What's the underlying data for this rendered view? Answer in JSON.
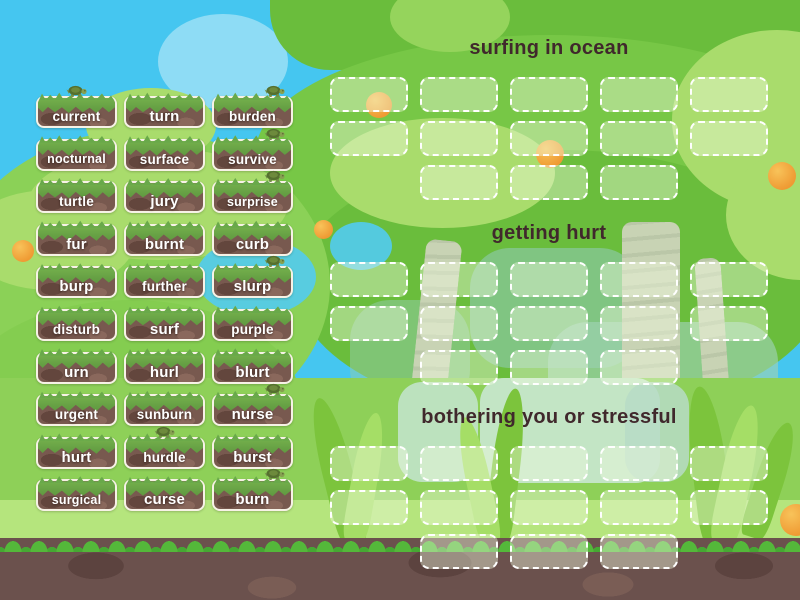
{
  "title": "word group sort game",
  "icons": {
    "turtle": "turtle-icon"
  },
  "colors": {
    "sky": "#45c6f0",
    "cloud": "#7ed8f4",
    "canopy": "#77c746",
    "canopy-dark": "#6abd3c",
    "bush": "#a9dc6c",
    "meadow": "#8ed058",
    "band": "#b5e57d",
    "dirt": "#6b514d",
    "dirt-dark": "#5c433f",
    "grass-fringe": "#54b83a",
    "trunk": "#c8d3b4",
    "fruit": "#ef9a33",
    "tile-brown": "#78594f",
    "tile-brown-dark": "#63463d",
    "tile-grass": "#74b04c",
    "tile-border": "#f7f2e6",
    "tile-text": "#ffffff",
    "header-text": "#40282c",
    "slot-border": "#ffffff",
    "slot-fill": "rgba(240,250,225,0.42)"
  },
  "tiles": [
    {
      "label": "current",
      "turtle": true,
      "turtle_pos": "center"
    },
    {
      "label": "turn",
      "turtle": false
    },
    {
      "label": "burden",
      "turtle": true,
      "turtle_pos": "right"
    },
    {
      "label": "nocturnal",
      "turtle": false
    },
    {
      "label": "surface",
      "turtle": false
    },
    {
      "label": "survive",
      "turtle": true,
      "turtle_pos": "right"
    },
    {
      "label": "turtle",
      "turtle": false
    },
    {
      "label": "jury",
      "turtle": false
    },
    {
      "label": "surprise",
      "turtle": true,
      "turtle_pos": "right"
    },
    {
      "label": "fur",
      "turtle": false
    },
    {
      "label": "burnt",
      "turtle": false
    },
    {
      "label": "curb",
      "turtle": false
    },
    {
      "label": "burp",
      "turtle": false
    },
    {
      "label": "further",
      "turtle": false
    },
    {
      "label": "slurp",
      "turtle": true,
      "turtle_pos": "right"
    },
    {
      "label": "disturb",
      "turtle": false
    },
    {
      "label": "surf",
      "turtle": false
    },
    {
      "label": "purple",
      "turtle": false
    },
    {
      "label": "urn",
      "turtle": false
    },
    {
      "label": "hurl",
      "turtle": false
    },
    {
      "label": "blurt",
      "turtle": false
    },
    {
      "label": "urgent",
      "turtle": false
    },
    {
      "label": "sunburn",
      "turtle": false
    },
    {
      "label": "nurse",
      "turtle": true,
      "turtle_pos": "right"
    },
    {
      "label": "hurt",
      "turtle": false
    },
    {
      "label": "hurdle",
      "turtle": true,
      "turtle_pos": "center"
    },
    {
      "label": "burst",
      "turtle": false
    },
    {
      "label": "surgical",
      "turtle": false
    },
    {
      "label": "curse",
      "turtle": false
    },
    {
      "label": "burn",
      "turtle": true,
      "turtle_pos": "right"
    }
  ],
  "groups": [
    {
      "title": "surfing in ocean",
      "slot_rows": [
        5,
        5,
        3
      ]
    },
    {
      "title": "getting hurt",
      "slot_rows": [
        5,
        5,
        3
      ]
    },
    {
      "title": "bothering you or stressful",
      "slot_rows": [
        5,
        5,
        3
      ]
    }
  ]
}
